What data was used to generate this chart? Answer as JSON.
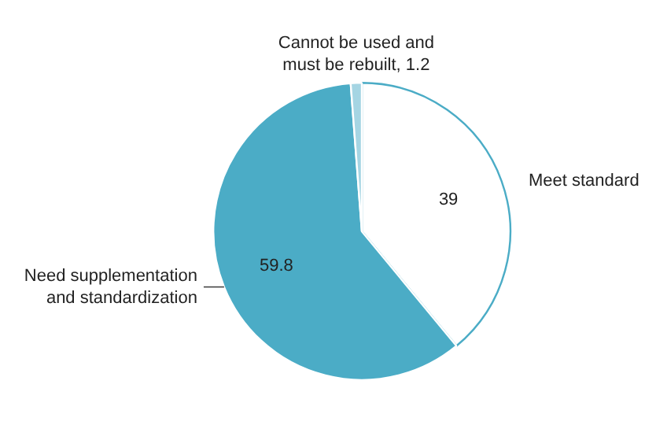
{
  "chart_data": {
    "type": "pie",
    "categories": [
      "Meet standard",
      "Need supplementation and standardization",
      "Cannot be used and must be rebuilt, 1.2"
    ],
    "values": [
      39,
      59.8,
      1.2
    ],
    "colors": [
      "#ffffff",
      "#4bacc6",
      "#a5d5e3"
    ],
    "value_labels": [
      "39",
      "59.8",
      null
    ],
    "legend": false
  }
}
